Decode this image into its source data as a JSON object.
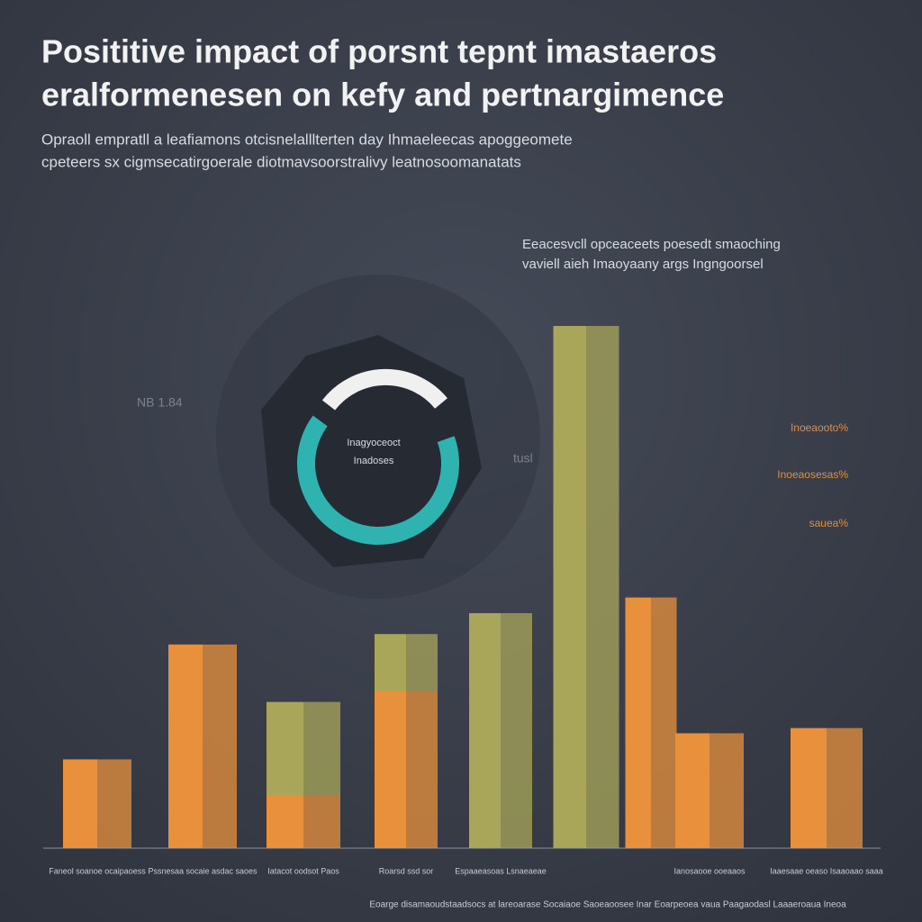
{
  "chart_data": {
    "type": "bar",
    "title": [
      "Posititive impact of  porsnt tepnt imastaeros",
      "eralformenesen on kefy and pertnargimence"
    ],
    "subtitle": [
      "Opraoll empratll a leafiamons otcisnelalllterten day Ihmaeleecas apoggeomete",
      "cpeteers sx cigmsecatirgoerale diotmavsoorstralivy leatnosoomanatats"
    ],
    "annotation": [
      "Eeacesvcll opceaceets poesedt smaoching",
      "vaviell aieh Imaoyaany args Ingngoorsel"
    ],
    "donut_label": [
      "Inagyoceoct",
      "Inadoses"
    ],
    "side_labels": [
      "NB  1.84",
      "tusl"
    ],
    "right_labels": [
      "Inoeaooto%",
      "Inoeaosesas%",
      "sauea%"
    ],
    "footer": "Eoarge disamaoudstaadsocs at lareoarase Socaiaoe Saoeaoosee Inar Eoarpeoea vaua Paagaodasl Laaaeroaua Ineoa",
    "categories": [
      "Faneol soanoe ocaipaoess",
      "Pssnesaa socaie asdac saoes",
      "Iatacot oodsot Paos",
      "Roarsd ssd sor",
      "Espaaeasoas Lsnaeaeae",
      null,
      null,
      "Ianosaooe ooeaaos",
      "Iaaesaae oeaso Isaaoaao saaa"
    ],
    "series": [
      {
        "color": "#e8903c",
        "values": [
          17,
          39,
          10,
          30,
          null,
          null,
          48,
          22,
          23
        ]
      },
      {
        "color": "#a9a65a",
        "values": [
          null,
          null,
          18,
          11,
          45,
          100,
          null,
          null,
          null
        ]
      }
    ],
    "ylim": [
      0,
      100
    ]
  }
}
